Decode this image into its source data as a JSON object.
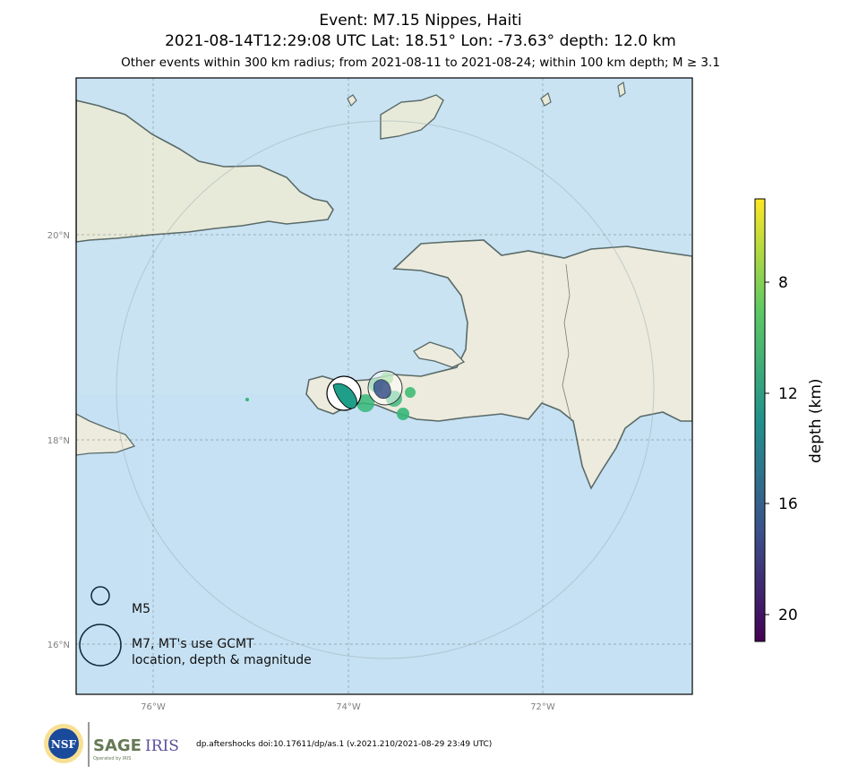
{
  "title": {
    "line1": "Event: M7.15 Nippes, Haiti",
    "line2": "2021-08-14T12:29:08 UTC Lat: 18.51° Lon: -73.63° depth: 12.0 km",
    "line3": "Other events within 300 km radius; from 2021-08-11 to 2021-08-24; within 100 km depth; M ≥ 3.1"
  },
  "map": {
    "lon_ticks": [
      "76°W",
      "74°W",
      "72°W"
    ],
    "lat_ticks": [
      "20°N",
      "18°N",
      "16°N"
    ],
    "lon_range": [
      -76.8,
      -70.5
    ],
    "lat_range": [
      15.5,
      21.5
    ],
    "radius_km": 300
  },
  "legend": {
    "small_label": "M5",
    "large_label_line1": "M7, MT's use GCMT",
    "large_label_line2": "location, depth & magnitude"
  },
  "colorbar": {
    "label": "depth (km)",
    "ticks": [
      "8",
      "12",
      "16",
      "20"
    ],
    "colormap": "viridis"
  },
  "footer": {
    "citation": "dp.aftershocks doi:10.17611/dp/as.1 (v.2021.210/2021-08-29 23:49 UTC)",
    "nsf_text": "NSF",
    "sage_text": "SAGE",
    "iris_text": "IRIS",
    "operated_text": "Operated by IRIS"
  },
  "colors": {
    "land": "#e9ead8",
    "sea": "#c8e2f2",
    "coast": "#5a6a68",
    "event_main": "#1f9e89",
    "event_aftershock": "#35b779"
  }
}
